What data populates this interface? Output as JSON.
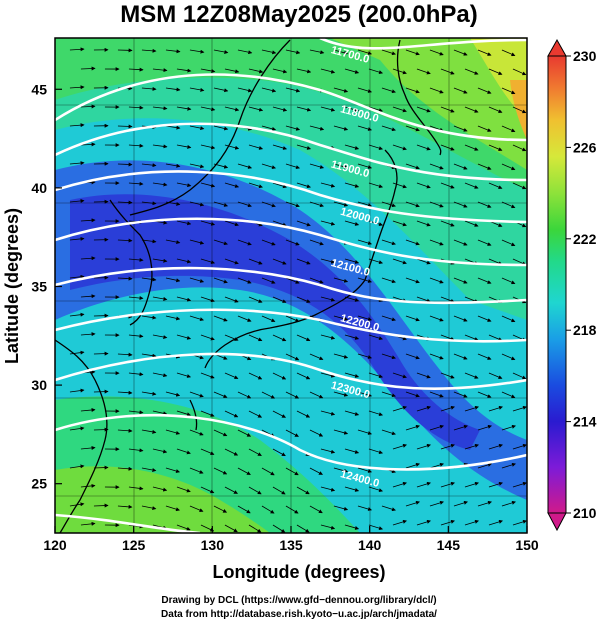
{
  "title": "MSM 12Z08May2025 (200.0hPa)",
  "x_axis": {
    "label": "Longitude (degrees)",
    "ticks": [
      "120",
      "125",
      "130",
      "135",
      "140",
      "145",
      "150"
    ],
    "range": [
      120,
      150
    ]
  },
  "y_axis": {
    "label": "Latitude  (degrees)",
    "ticks": [
      "25",
      "30",
      "35",
      "40",
      "45"
    ],
    "range": [
      22.5,
      47.6
    ]
  },
  "colorbar": {
    "ticks": [
      "210",
      "214",
      "218",
      "222",
      "226",
      "230"
    ],
    "range": [
      210,
      230
    ],
    "colors": [
      "#d01a8a",
      "#7d1bd8",
      "#2a1bd0",
      "#1a4ce0",
      "#1a9ee6",
      "#1fd6d0",
      "#22d98a",
      "#3bd63b",
      "#8ee23a",
      "#d6e83a",
      "#f0c030",
      "#f07a30",
      "#e83a30"
    ]
  },
  "contours": [
    {
      "label": "11700.0",
      "lat_at_140": 47.0
    },
    {
      "label": "11800.0",
      "lat_at_140": 44.0
    },
    {
      "label": "11900.0",
      "lat_at_140": 41.2
    },
    {
      "label": "12000.0",
      "lat_at_140": 38.8
    },
    {
      "label": "12100.0",
      "lat_at_140": 36.2
    },
    {
      "label": "12200.0",
      "lat_at_140": 33.4
    },
    {
      "label": "12300.0",
      "lat_at_140": 30.0
    },
    {
      "label": "12400.0",
      "lat_at_140": 25.5
    }
  ],
  "credits": {
    "line1": "Drawing by DCL (https://www.gfd−dennou.org/library/dcl/)",
    "line2": "Data from http://database.rish.kyoto−u.ac.jp/arch/jmadata/"
  }
}
